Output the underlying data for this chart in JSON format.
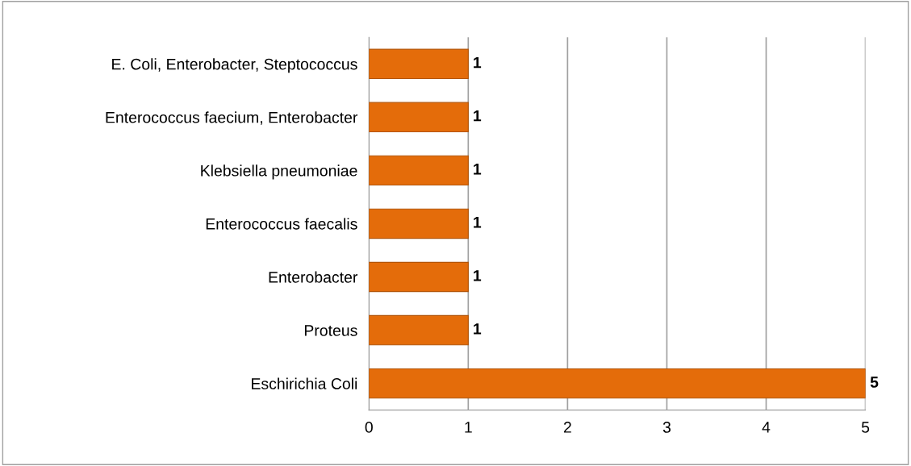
{
  "chart_data": {
    "type": "bar",
    "orientation": "horizontal",
    "categories": [
      "E. Coli, Enterobacter, Steptococcus",
      "Enterococcus faecium, Enterobacter",
      "Klebsiella pneumoniae",
      "Enterococcus faecalis",
      "Enterobacter",
      "Proteus",
      "Eschirichia Coli"
    ],
    "values": [
      1,
      1,
      1,
      1,
      1,
      1,
      5
    ],
    "color": "#e46c0a",
    "xlim": [
      0,
      5
    ],
    "xticks": [
      0,
      1,
      2,
      3,
      4,
      5
    ],
    "grid": "x",
    "data_labels": true
  }
}
